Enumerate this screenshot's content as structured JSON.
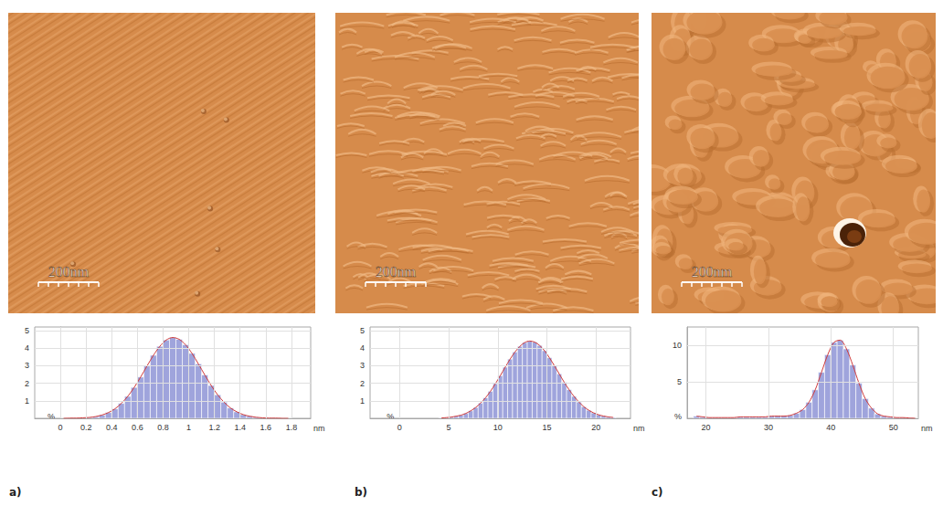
{
  "images": [
    {
      "scale_bar": "200nm"
    },
    {
      "scale_bar": "200nm"
    },
    {
      "scale_bar": "200nm"
    }
  ],
  "chart_data": [
    {
      "type": "histogram",
      "panel": "a)",
      "x_label": "nm",
      "y_label": "%",
      "color": "#9fa4dc",
      "grid": true,
      "bins": [
        0,
        0.05,
        0.1,
        0.15,
        0.2,
        0.25,
        0.3,
        0.35,
        0.4,
        0.45,
        0.5,
        0.55,
        0.6,
        0.65,
        0.7,
        0.75,
        0.8,
        0.85,
        0.9,
        0.95,
        1,
        1.05,
        1.1,
        1.15,
        1.2,
        1.25,
        1.3,
        1.35,
        1.4,
        1.45,
        1.5,
        1.55,
        1.6,
        1.65,
        1.7,
        1.75,
        1.8
      ],
      "counts": [
        0,
        0.01,
        0.01,
        0.03,
        0.05,
        0.1,
        0.19,
        0.33,
        0.54,
        0.85,
        1.25,
        1.76,
        2.35,
        2.98,
        3.59,
        4.1,
        4.46,
        4.6,
        4.5,
        4.19,
        3.7,
        3.1,
        2.47,
        1.87,
        1.34,
        0.92,
        0.59,
        0.37,
        0.21,
        0.12,
        0.06,
        0.03,
        0.01,
        0.01,
        0,
        0
      ],
      "xlim": [
        -0.2,
        1.95
      ],
      "xticks": [
        0,
        0.2,
        0.4,
        0.6,
        0.8,
        1,
        1.2,
        1.4,
        1.6,
        1.8
      ],
      "ylim": [
        0,
        5.2
      ],
      "yticks": [
        1,
        2,
        3,
        4,
        5
      ]
    },
    {
      "type": "histogram",
      "panel": "b)",
      "x_label": "nm",
      "y_label": "%",
      "color": "#9fa4dc",
      "grid": true,
      "bins": [
        4,
        4.5,
        5,
        5.5,
        6,
        6.5,
        7,
        7.5,
        8,
        8.5,
        9,
        9.5,
        10,
        10.5,
        11,
        11.5,
        12,
        12.5,
        13,
        13.5,
        14,
        14.5,
        15,
        15.5,
        16,
        16.5,
        17,
        17.5,
        18,
        18.5,
        19,
        19.5,
        20,
        20.5,
        21,
        21.5,
        22
      ],
      "counts": [
        0.02,
        0.04,
        0.07,
        0.12,
        0.18,
        0.28,
        0.43,
        0.62,
        0.87,
        1.17,
        1.54,
        1.97,
        2.43,
        2.91,
        3.37,
        3.78,
        4.1,
        4.32,
        4.4,
        4.34,
        4.15,
        3.85,
        3.45,
        3.0,
        2.53,
        2.06,
        1.63,
        1.25,
        0.93,
        0.66,
        0.46,
        0.31,
        0.2,
        0.13,
        0.08,
        0.05
      ],
      "xlim": [
        -3,
        23.5
      ],
      "xticks": [
        0,
        5,
        10,
        15,
        20
      ],
      "ylim": [
        0,
        5.2
      ],
      "yticks": [
        1,
        2,
        3,
        4,
        5
      ]
    },
    {
      "type": "histogram",
      "panel": "c)",
      "x_label": "nm",
      "y_label": "%",
      "color": "#9fa4dc",
      "grid": true,
      "bins": [
        18,
        19,
        20,
        21,
        22,
        23,
        24,
        25,
        26,
        27,
        28,
        29,
        30,
        31,
        32,
        33,
        34,
        35,
        36,
        37,
        38,
        39,
        40,
        41,
        42,
        43,
        44,
        45,
        46,
        47,
        48,
        49,
        50,
        51,
        52,
        53,
        54
      ],
      "counts": [
        0.3,
        0.2,
        0.1,
        0.1,
        0.1,
        0.1,
        0.1,
        0.2,
        0.2,
        0.2,
        0.2,
        0.2,
        0.3,
        0.3,
        0.3,
        0.4,
        0.7,
        1.2,
        2.2,
        3.9,
        6.3,
        8.7,
        10.4,
        10.7,
        9.5,
        7.3,
        4.8,
        2.7,
        1.4,
        0.6,
        0.3,
        0.2,
        0.1,
        0.1,
        0.05,
        0
      ],
      "xlim": [
        17,
        54
      ],
      "xticks": [
        20,
        30,
        40,
        50
      ],
      "ylim": [
        0,
        12.5
      ],
      "yticks": [
        5,
        10
      ]
    }
  ]
}
